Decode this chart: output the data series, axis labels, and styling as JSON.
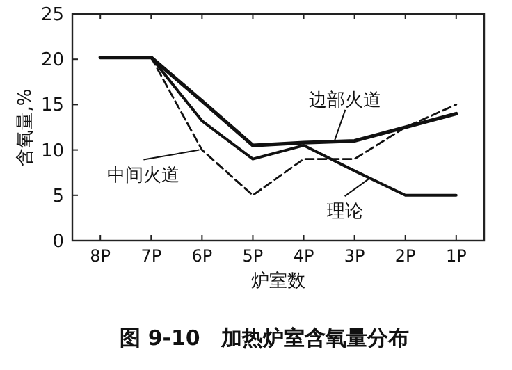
{
  "chart_data": {
    "type": "line",
    "title": "图 9-10　加热炉室含氧量分布",
    "xlabel": "炉室数",
    "ylabel": "含氧量,%",
    "categories": [
      "8P",
      "7P",
      "6P",
      "5P",
      "4P",
      "3P",
      "2P",
      "1P"
    ],
    "series": [
      {
        "color": "#111111",
        "line_style": "solid",
        "values": [
          20.2,
          20.2,
          15.4,
          10.5,
          10.8,
          11,
          12.5,
          14
        ]
      },
      {
        "color": "#111111",
        "line_style": "solid",
        "values": [
          null,
          20.2,
          13.2,
          9,
          10.5,
          7.7,
          5,
          5
        ]
      },
      {
        "color": "#111111",
        "line_style": "dashed",
        "values": [
          null,
          20.2,
          10,
          5,
          9,
          9,
          12.5,
          15
        ]
      }
    ],
    "annotations": [
      {
        "text": "边部火道",
        "y": 10.9
      },
      "理论",
      {
        "text": "中间火道",
        "x": "6P",
        "y": 10
      }
    ],
    "ylim": [
      0,
      25
    ],
    "yticks": [
      0,
      5,
      10,
      15,
      20,
      25
    ],
    "grid": false,
    "marker": "none"
  }
}
